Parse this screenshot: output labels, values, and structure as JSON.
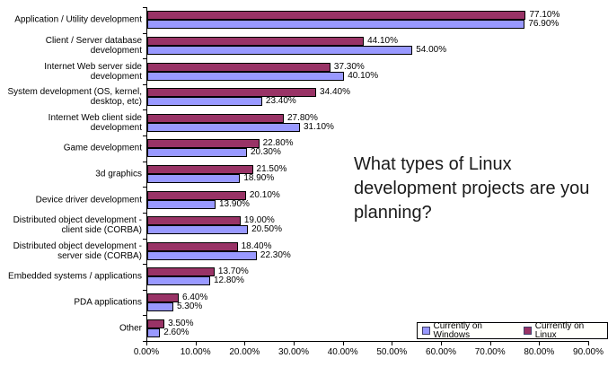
{
  "question": {
    "text": "What types of Linux development projects are you planning?"
  },
  "colors": {
    "series_windows": "#9999FF",
    "series_linux": "#993366",
    "bar_border": "#000000",
    "axis": "#000000",
    "background": "#FFFFFF"
  },
  "chart_data": {
    "type": "bar",
    "orientation": "horizontal",
    "grid": "off",
    "title": "",
    "xlabel": "",
    "ylabel": "",
    "xlim": [
      0,
      90
    ],
    "x_tick_labels": [
      "0.00%",
      "10.00%",
      "20.00%",
      "30.00%",
      "40.00%",
      "50.00%",
      "60.00%",
      "70.00%",
      "80.00%",
      "90.00%"
    ],
    "data_label_format": "0.00%",
    "categories": [
      "Application / Utility development",
      "Client / Server database development",
      "Internet Web server side development",
      "System development (OS, kernel, desktop, etc)",
      "Internet Web client side development",
      "Game development",
      "3d graphics",
      "Device driver development",
      "Distributed object development - client side (CORBA)",
      "Distributed object development - server side (CORBA)",
      "Embedded systems / applications",
      "PDA applications",
      "Other"
    ],
    "series": [
      {
        "name": "Currently on Windows",
        "color": "#9999FF",
        "values": [
          76.9,
          54.0,
          40.1,
          23.4,
          31.1,
          20.3,
          18.9,
          13.9,
          20.5,
          22.3,
          12.8,
          5.3,
          2.6
        ]
      },
      {
        "name": "Currently on Linux",
        "color": "#993366",
        "values": [
          77.1,
          44.1,
          37.3,
          34.4,
          27.8,
          22.8,
          21.5,
          20.1,
          19.0,
          18.4,
          13.7,
          6.4,
          3.5
        ]
      }
    ],
    "group_order_top_to_bottom": [
      "Currently on Linux",
      "Currently on Windows"
    ],
    "legend": {
      "position": "bottom-right",
      "entries": [
        "Currently on Windows",
        "Currently on Linux"
      ]
    }
  }
}
